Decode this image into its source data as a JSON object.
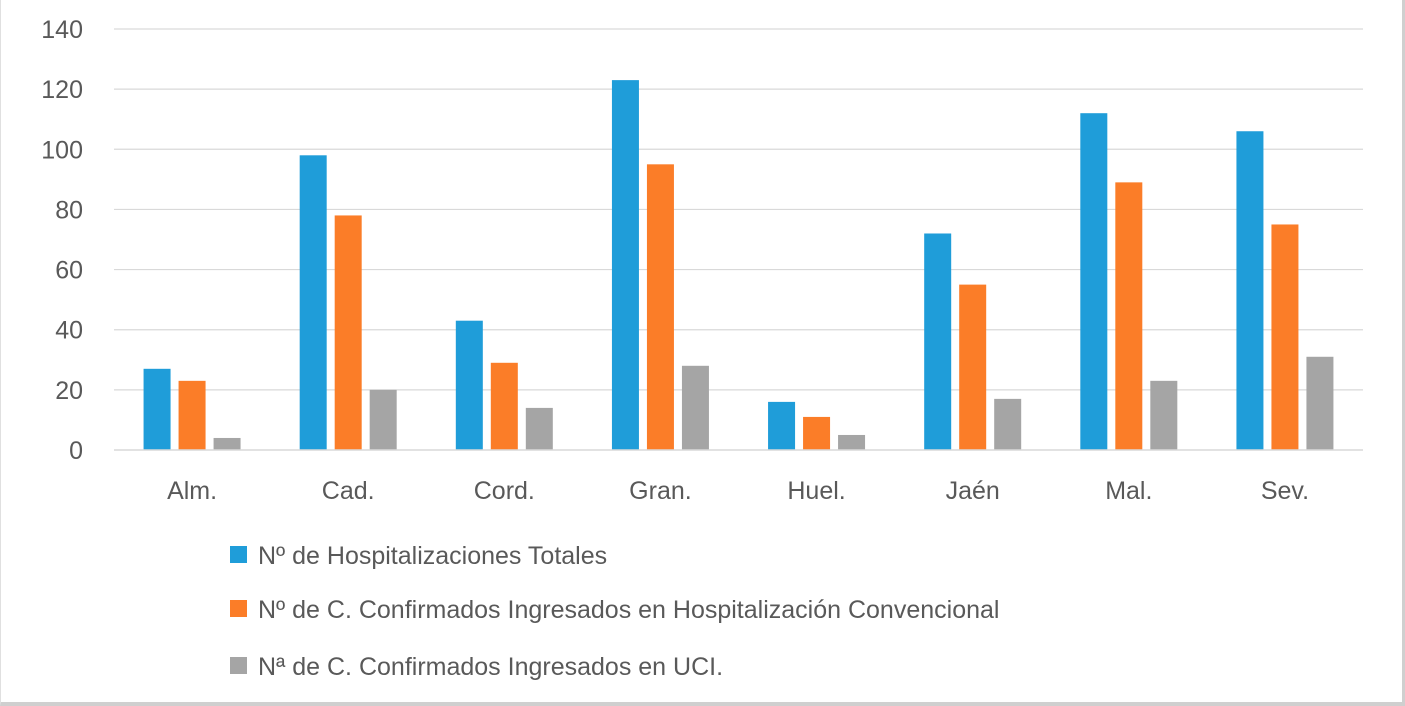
{
  "chart_data": {
    "type": "bar",
    "categories": [
      "Alm.",
      "Cad.",
      "Cord.",
      "Gran.",
      "Huel.",
      "Jaén",
      "Mal.",
      "Sev."
    ],
    "series": [
      {
        "name": "Nº de Hospitalizaciones Totales",
        "color": "#1f9dd9",
        "values": [
          27,
          98,
          43,
          123,
          16,
          72,
          112,
          106
        ]
      },
      {
        "name": "Nº de C. Confirmados Ingresados en Hospitalización Convencional",
        "color": "#fb7d28",
        "values": [
          23,
          78,
          29,
          95,
          11,
          55,
          89,
          75
        ]
      },
      {
        "name": "Nª de C. Confirmados Ingresados en UCI.",
        "color": "#a5a5a5",
        "values": [
          4,
          20,
          14,
          28,
          5,
          17,
          23,
          31
        ]
      }
    ],
    "yticks": [
      "0",
      "20",
      "40",
      "60",
      "80",
      "100",
      "120",
      "140"
    ],
    "ylim": [
      0,
      140
    ],
    "grid": true,
    "legend_position": "bottom"
  }
}
